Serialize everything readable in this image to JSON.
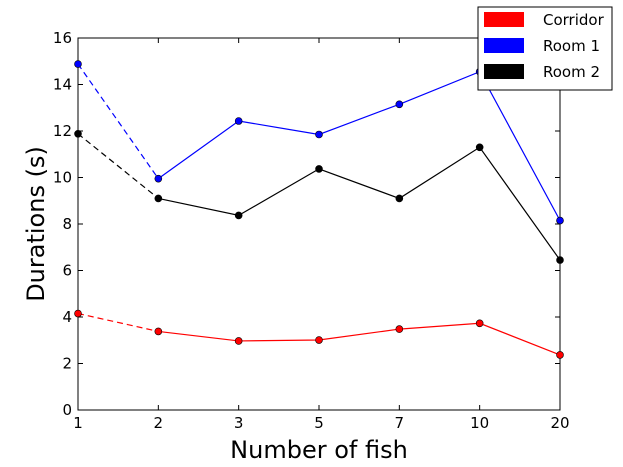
{
  "chart_data": {
    "type": "line",
    "title": "",
    "xlabel": "Number of fish",
    "ylabel": "Durations (s)",
    "categories": [
      "1",
      "2",
      "3",
      "5",
      "7",
      "10",
      "20"
    ],
    "ylim": [
      0,
      16
    ],
    "yticks": [
      0,
      2,
      4,
      6,
      8,
      10,
      12,
      14,
      16
    ],
    "grid": false,
    "legend_position": "top-right",
    "dashed_segment": "first",
    "series": [
      {
        "name": "Corridor",
        "color": "#ff0000",
        "values": [
          4.15,
          3.38,
          2.97,
          3.01,
          3.48,
          3.73,
          2.37
        ]
      },
      {
        "name": "Room 1",
        "color": "#0000ff",
        "values": [
          14.88,
          9.95,
          12.43,
          11.85,
          13.15,
          14.55,
          8.15
        ]
      },
      {
        "name": "Room 2",
        "color": "#000000",
        "values": [
          11.88,
          9.1,
          8.37,
          10.37,
          9.1,
          11.3,
          6.45
        ]
      }
    ]
  }
}
